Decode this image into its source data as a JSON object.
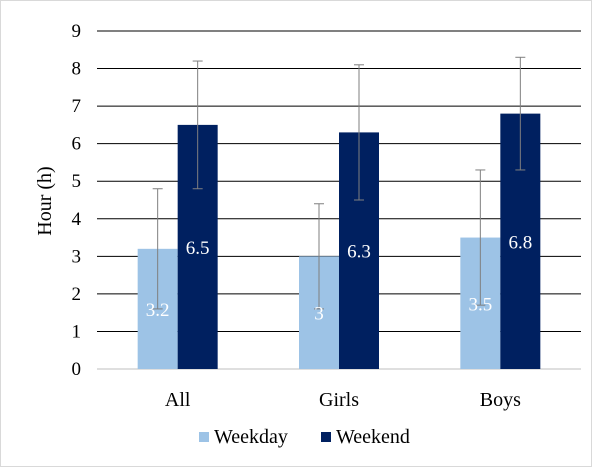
{
  "chart_data": {
    "type": "bar",
    "title": "",
    "xlabel": "",
    "ylabel": "Hour (h)",
    "ylim": [
      0,
      9
    ],
    "yticks": [
      "0",
      "1",
      "2",
      "3",
      "4",
      "5",
      "6",
      "7",
      "8",
      "9"
    ],
    "grid": "horizontal",
    "legend_position": "bottom",
    "categories": [
      "All",
      "Girls",
      "Boys"
    ],
    "series": [
      {
        "name": "Weekday",
        "color": "#9dc3e6",
        "values": [
          3.2,
          3,
          3.5
        ],
        "labels": [
          "3.2",
          "3",
          "3.5"
        ],
        "error_low": [
          1.6,
          1.6,
          1.7
        ],
        "error_high": [
          4.8,
          4.4,
          5.3
        ]
      },
      {
        "name": "Weekend",
        "color": "#002060",
        "values": [
          6.5,
          6.3,
          6.8
        ],
        "labels": [
          "6.5",
          "6.3",
          "6.8"
        ],
        "error_low": [
          4.8,
          4.5,
          5.3
        ],
        "error_high": [
          8.2,
          8.1,
          8.3
        ]
      }
    ]
  }
}
